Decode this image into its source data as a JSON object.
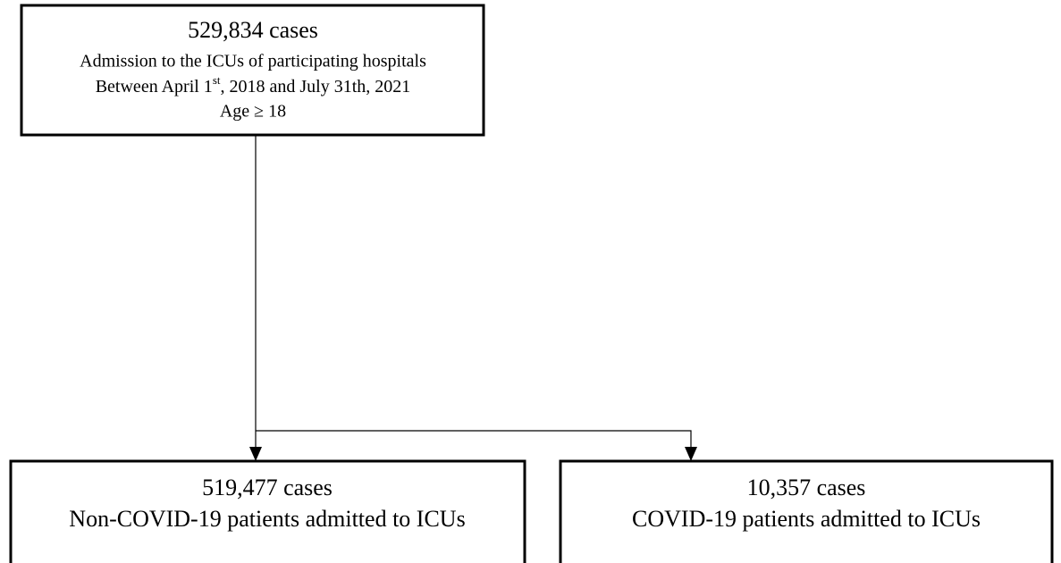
{
  "nodes": [
    {
      "count": "529,834 cases",
      "lines": [
        "Admission to the ICUs of participating hospitals"
      ],
      "date_line": {
        "before": "Between April 1",
        "sup": "st",
        "after": ", 2018 and July 31th, 2021"
      },
      "criteria": "Age ≥ 18"
    },
    {
      "count": "519,477 cases",
      "label": "Non-COVID-19 patients admitted to ICUs"
    },
    {
      "count": "10,357 cases",
      "label": "COVID-19 patients admitted to ICUs"
    }
  ]
}
